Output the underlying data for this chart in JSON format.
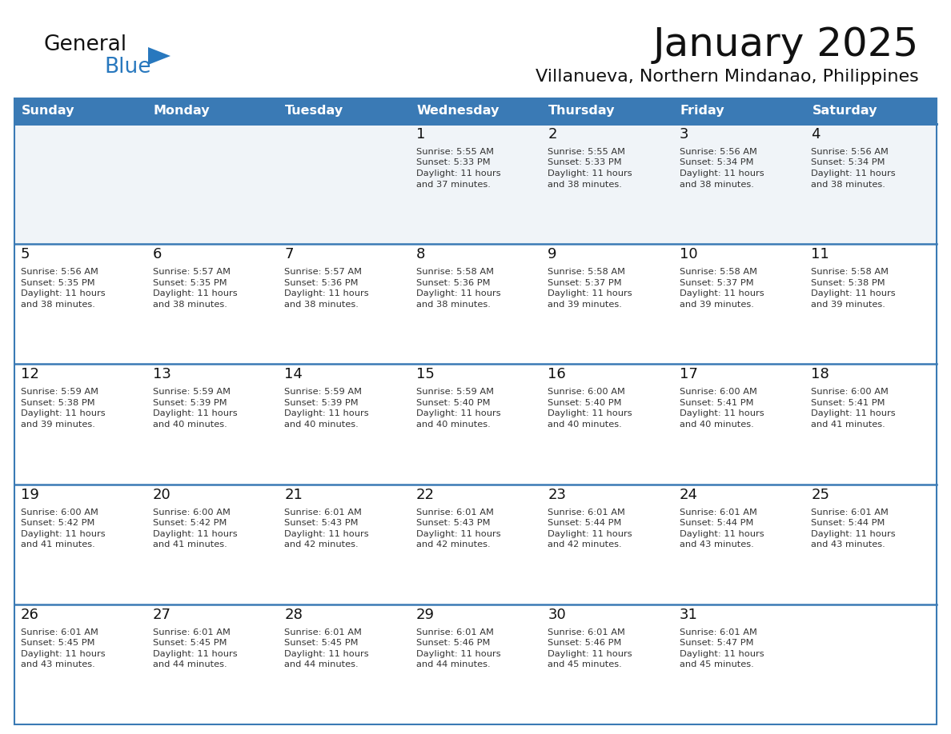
{
  "title": "January 2025",
  "subtitle": "Villanueva, Northern Mindanao, Philippines",
  "days_of_week": [
    "Sunday",
    "Monday",
    "Tuesday",
    "Wednesday",
    "Thursday",
    "Friday",
    "Saturday"
  ],
  "header_bg": "#3a7ab5",
  "header_text": "#ffffff",
  "row_bg_week1": "#f0f4f8",
  "row_bg_other": "#ffffff",
  "cell_text_color": "#333333",
  "day_num_color": "#111111",
  "border_color": "#3a7ab5",
  "sep_line_color": "#3a7ab5",
  "logo_general_color": "#111111",
  "logo_blue_color": "#2878be",
  "calendar_data": [
    [
      {
        "day": null,
        "info": null
      },
      {
        "day": null,
        "info": null
      },
      {
        "day": null,
        "info": null
      },
      {
        "day": 1,
        "info": "Sunrise: 5:55 AM\nSunset: 5:33 PM\nDaylight: 11 hours\nand 37 minutes."
      },
      {
        "day": 2,
        "info": "Sunrise: 5:55 AM\nSunset: 5:33 PM\nDaylight: 11 hours\nand 38 minutes."
      },
      {
        "day": 3,
        "info": "Sunrise: 5:56 AM\nSunset: 5:34 PM\nDaylight: 11 hours\nand 38 minutes."
      },
      {
        "day": 4,
        "info": "Sunrise: 5:56 AM\nSunset: 5:34 PM\nDaylight: 11 hours\nand 38 minutes."
      }
    ],
    [
      {
        "day": 5,
        "info": "Sunrise: 5:56 AM\nSunset: 5:35 PM\nDaylight: 11 hours\nand 38 minutes."
      },
      {
        "day": 6,
        "info": "Sunrise: 5:57 AM\nSunset: 5:35 PM\nDaylight: 11 hours\nand 38 minutes."
      },
      {
        "day": 7,
        "info": "Sunrise: 5:57 AM\nSunset: 5:36 PM\nDaylight: 11 hours\nand 38 minutes."
      },
      {
        "day": 8,
        "info": "Sunrise: 5:58 AM\nSunset: 5:36 PM\nDaylight: 11 hours\nand 38 minutes."
      },
      {
        "day": 9,
        "info": "Sunrise: 5:58 AM\nSunset: 5:37 PM\nDaylight: 11 hours\nand 39 minutes."
      },
      {
        "day": 10,
        "info": "Sunrise: 5:58 AM\nSunset: 5:37 PM\nDaylight: 11 hours\nand 39 minutes."
      },
      {
        "day": 11,
        "info": "Sunrise: 5:58 AM\nSunset: 5:38 PM\nDaylight: 11 hours\nand 39 minutes."
      }
    ],
    [
      {
        "day": 12,
        "info": "Sunrise: 5:59 AM\nSunset: 5:38 PM\nDaylight: 11 hours\nand 39 minutes."
      },
      {
        "day": 13,
        "info": "Sunrise: 5:59 AM\nSunset: 5:39 PM\nDaylight: 11 hours\nand 40 minutes."
      },
      {
        "day": 14,
        "info": "Sunrise: 5:59 AM\nSunset: 5:39 PM\nDaylight: 11 hours\nand 40 minutes."
      },
      {
        "day": 15,
        "info": "Sunrise: 5:59 AM\nSunset: 5:40 PM\nDaylight: 11 hours\nand 40 minutes."
      },
      {
        "day": 16,
        "info": "Sunrise: 6:00 AM\nSunset: 5:40 PM\nDaylight: 11 hours\nand 40 minutes."
      },
      {
        "day": 17,
        "info": "Sunrise: 6:00 AM\nSunset: 5:41 PM\nDaylight: 11 hours\nand 40 minutes."
      },
      {
        "day": 18,
        "info": "Sunrise: 6:00 AM\nSunset: 5:41 PM\nDaylight: 11 hours\nand 41 minutes."
      }
    ],
    [
      {
        "day": 19,
        "info": "Sunrise: 6:00 AM\nSunset: 5:42 PM\nDaylight: 11 hours\nand 41 minutes."
      },
      {
        "day": 20,
        "info": "Sunrise: 6:00 AM\nSunset: 5:42 PM\nDaylight: 11 hours\nand 41 minutes."
      },
      {
        "day": 21,
        "info": "Sunrise: 6:01 AM\nSunset: 5:43 PM\nDaylight: 11 hours\nand 42 minutes."
      },
      {
        "day": 22,
        "info": "Sunrise: 6:01 AM\nSunset: 5:43 PM\nDaylight: 11 hours\nand 42 minutes."
      },
      {
        "day": 23,
        "info": "Sunrise: 6:01 AM\nSunset: 5:44 PM\nDaylight: 11 hours\nand 42 minutes."
      },
      {
        "day": 24,
        "info": "Sunrise: 6:01 AM\nSunset: 5:44 PM\nDaylight: 11 hours\nand 43 minutes."
      },
      {
        "day": 25,
        "info": "Sunrise: 6:01 AM\nSunset: 5:44 PM\nDaylight: 11 hours\nand 43 minutes."
      }
    ],
    [
      {
        "day": 26,
        "info": "Sunrise: 6:01 AM\nSunset: 5:45 PM\nDaylight: 11 hours\nand 43 minutes."
      },
      {
        "day": 27,
        "info": "Sunrise: 6:01 AM\nSunset: 5:45 PM\nDaylight: 11 hours\nand 44 minutes."
      },
      {
        "day": 28,
        "info": "Sunrise: 6:01 AM\nSunset: 5:45 PM\nDaylight: 11 hours\nand 44 minutes."
      },
      {
        "day": 29,
        "info": "Sunrise: 6:01 AM\nSunset: 5:46 PM\nDaylight: 11 hours\nand 44 minutes."
      },
      {
        "day": 30,
        "info": "Sunrise: 6:01 AM\nSunset: 5:46 PM\nDaylight: 11 hours\nand 45 minutes."
      },
      {
        "day": 31,
        "info": "Sunrise: 6:01 AM\nSunset: 5:47 PM\nDaylight: 11 hours\nand 45 minutes."
      },
      {
        "day": null,
        "info": null
      }
    ]
  ]
}
